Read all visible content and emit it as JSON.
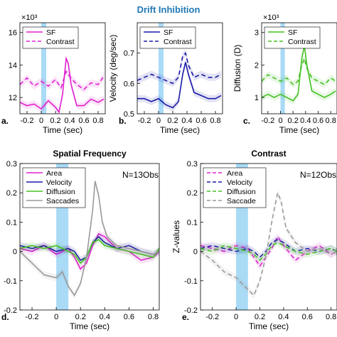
{
  "figure": {
    "title": "Drift Inhibition",
    "panel_letters": [
      "a.",
      "b.",
      "c.",
      "d.",
      "e."
    ]
  },
  "colors": {
    "sf": "#e020d0",
    "contrast": "#e020d0",
    "velocity": "#1a1aa8",
    "diffusion": "#44c020",
    "area": "#e020d0",
    "saccades": "#9a9a9a",
    "stim_band": "#9ad3f5",
    "title": "#1f78b4"
  },
  "chart_data": [
    {
      "type": "line",
      "panel": "a.",
      "xlabel": "Time (sec)",
      "ylabel": "",
      "exponent": "×10³",
      "xlim": [
        -0.3,
        0.9
      ],
      "ylim": [
        11,
        16.6
      ],
      "xticks": [
        -0.2,
        0,
        0.2,
        0.4,
        0.6,
        0.8
      ],
      "xticklabels": [
        "-0.2",
        "0",
        "0.2",
        "0.4",
        "0.6",
        "0.8"
      ],
      "yticks": [
        12,
        14,
        16
      ],
      "yticklabels": [
        "12",
        "14",
        "16"
      ],
      "stim_band": [
        0,
        0.07
      ],
      "legend": {
        "position": "top",
        "entries": [
          "SF",
          "Contrast"
        ]
      },
      "series": [
        {
          "name": "SF",
          "style": "solid",
          "x": [
            -0.3,
            -0.2,
            -0.1,
            0,
            0.1,
            0.2,
            0.25,
            0.3,
            0.35,
            0.38,
            0.42,
            0.5,
            0.6,
            0.7,
            0.8,
            0.88
          ],
          "y": [
            11.7,
            11.5,
            11.6,
            11.3,
            11.8,
            11.4,
            11.1,
            12.2,
            14.4,
            14.1,
            12.8,
            11.5,
            11.5,
            11.9,
            11.7,
            11.9
          ]
        },
        {
          "name": "Contrast",
          "style": "dashed",
          "x": [
            -0.3,
            -0.2,
            -0.1,
            0,
            0.1,
            0.2,
            0.28,
            0.35,
            0.4,
            0.5,
            0.6,
            0.7,
            0.8,
            0.88
          ],
          "y": [
            12.8,
            13.2,
            12.7,
            13.0,
            12.7,
            13.1,
            12.6,
            13.6,
            13.3,
            12.8,
            12.5,
            12.9,
            12.8,
            13.3
          ]
        }
      ]
    },
    {
      "type": "line",
      "panel": "b.",
      "xlabel": "Time (sec)",
      "ylabel": "Velocity (deg/sec)",
      "xlim": [
        -0.3,
        0.9
      ],
      "ylim": [
        0.5,
        0.8
      ],
      "xticks": [
        -0.2,
        0,
        0.2,
        0.4,
        0.6,
        0.8
      ],
      "xticklabels": [
        "-0.2",
        "0",
        "0.2",
        "0.4",
        "0.6",
        "0.8"
      ],
      "yticks": [
        0.5,
        0.6,
        0.7
      ],
      "yticklabels": [
        "0.5",
        "0.6",
        "0.7"
      ],
      "stim_band": [
        0,
        0.07
      ],
      "legend": {
        "position": "top",
        "entries": [
          "SF",
          "Contrast"
        ]
      },
      "series": [
        {
          "name": "SF",
          "style": "solid",
          "x": [
            -0.3,
            -0.2,
            -0.1,
            0,
            0.1,
            0.2,
            0.28,
            0.34,
            0.38,
            0.42,
            0.5,
            0.6,
            0.7,
            0.8,
            0.88
          ],
          "y": [
            0.55,
            0.55,
            0.54,
            0.55,
            0.53,
            0.52,
            0.54,
            0.63,
            0.67,
            0.63,
            0.57,
            0.56,
            0.55,
            0.55,
            0.56
          ]
        },
        {
          "name": "Contrast",
          "style": "dashed",
          "x": [
            -0.3,
            -0.2,
            -0.1,
            0,
            0.1,
            0.2,
            0.28,
            0.34,
            0.38,
            0.42,
            0.5,
            0.6,
            0.7,
            0.8,
            0.88
          ],
          "y": [
            0.61,
            0.62,
            0.63,
            0.62,
            0.61,
            0.6,
            0.62,
            0.69,
            0.7,
            0.66,
            0.62,
            0.63,
            0.62,
            0.62,
            0.63
          ]
        }
      ]
    },
    {
      "type": "line",
      "panel": "c.",
      "xlabel": "Time (sec)",
      "ylabel": "Diffusion (D)",
      "exponent": "×10³",
      "xlim": [
        -0.3,
        0.9
      ],
      "ylim": [
        0.5,
        3.3
      ],
      "xticks": [
        -0.2,
        0,
        0.2,
        0.4,
        0.6,
        0.8
      ],
      "xticklabels": [
        "-0.2",
        "0",
        "0.2",
        "0.4",
        "0.6",
        "0.8"
      ],
      "yticks": [
        1,
        2,
        3
      ],
      "yticklabels": [
        "1",
        "2",
        "3"
      ],
      "stim_band": [
        0,
        0.07
      ],
      "legend": {
        "position": "top",
        "entries": [
          "SF",
          "Contrast"
        ]
      },
      "series": [
        {
          "name": "SF",
          "style": "solid",
          "x": [
            -0.3,
            -0.2,
            -0.1,
            0,
            0.1,
            0.2,
            0.28,
            0.34,
            0.38,
            0.42,
            0.5,
            0.6,
            0.7,
            0.8,
            0.88
          ],
          "y": [
            1.0,
            1.1,
            1.0,
            1.1,
            1.0,
            0.9,
            1.1,
            2.2,
            2.6,
            2.0,
            1.2,
            1.1,
            1.0,
            1.1,
            1.2
          ]
        },
        {
          "name": "Contrast",
          "style": "dashed",
          "x": [
            -0.3,
            -0.2,
            -0.1,
            0,
            0.1,
            0.2,
            0.28,
            0.34,
            0.38,
            0.42,
            0.5,
            0.6,
            0.7,
            0.8,
            0.88
          ],
          "y": [
            1.5,
            1.7,
            1.6,
            1.5,
            1.6,
            1.4,
            1.5,
            2.0,
            2.2,
            1.9,
            1.6,
            1.5,
            1.4,
            1.6,
            1.5
          ]
        }
      ]
    },
    {
      "type": "line",
      "panel": "d.",
      "title": "Spatial Frequency",
      "annotation": "N=13Obs",
      "xlabel": "Time (sec)",
      "ylabel": "",
      "xlim": [
        -0.3,
        0.85
      ],
      "ylim": [
        -0.2,
        0.3
      ],
      "xticks": [
        -0.2,
        0,
        0.2,
        0.4,
        0.6,
        0.8
      ],
      "xticklabels": [
        "-0.2",
        "0",
        "0.2",
        "0.4",
        "0.6",
        "0.8"
      ],
      "yticks": [
        -0.2,
        -0.1,
        0,
        0.1,
        0.2,
        0.3
      ],
      "yticklabels": [
        "-0.2",
        "-0.1",
        "0",
        "0.1",
        "0.2",
        "0.3"
      ],
      "stim_band": [
        0,
        0.1
      ],
      "legend": {
        "position": "top-left",
        "entries": [
          "Area",
          "Velocity",
          "Diffusion",
          "Saccades"
        ]
      },
      "series": [
        {
          "name": "Area",
          "style": "solid",
          "x": [
            -0.3,
            -0.2,
            -0.1,
            0,
            0.1,
            0.15,
            0.2,
            0.25,
            0.3,
            0.35,
            0.4,
            0.5,
            0.6,
            0.7,
            0.8,
            0.85
          ],
          "y": [
            0.01,
            0.0,
            0.02,
            -0.01,
            0.01,
            -0.02,
            -0.06,
            -0.04,
            0.02,
            0.06,
            0.05,
            0.01,
            0.0,
            -0.03,
            -0.02,
            0.0
          ]
        },
        {
          "name": "Velocity",
          "style": "solid",
          "x": [
            -0.3,
            -0.2,
            -0.1,
            0,
            0.1,
            0.15,
            0.2,
            0.25,
            0.3,
            0.35,
            0.4,
            0.5,
            0.6,
            0.7,
            0.8,
            0.85
          ],
          "y": [
            0.02,
            0.01,
            0.02,
            0.0,
            0.01,
            0.0,
            -0.03,
            -0.02,
            0.03,
            0.05,
            0.03,
            0.01,
            0.02,
            0.0,
            -0.01,
            0.0
          ]
        },
        {
          "name": "Diffusion",
          "style": "solid",
          "x": [
            -0.3,
            -0.2,
            -0.1,
            0,
            0.1,
            0.15,
            0.2,
            0.25,
            0.3,
            0.35,
            0.4,
            0.5,
            0.6,
            0.7,
            0.8,
            0.85
          ],
          "y": [
            0.01,
            0.02,
            0.01,
            0.02,
            0.0,
            -0.01,
            -0.04,
            -0.02,
            0.03,
            0.04,
            0.02,
            0.01,
            0.0,
            -0.01,
            -0.02,
            0.01
          ]
        },
        {
          "name": "Saccades",
          "style": "solid",
          "x": [
            -0.3,
            -0.2,
            -0.1,
            0,
            0.05,
            0.1,
            0.15,
            0.2,
            0.25,
            0.3,
            0.32,
            0.35,
            0.38,
            0.42,
            0.5,
            0.6,
            0.7,
            0.8,
            0.85
          ],
          "y": [
            0.0,
            -0.04,
            -0.08,
            -0.09,
            -0.07,
            -0.12,
            -0.15,
            -0.11,
            -0.02,
            0.14,
            0.24,
            0.19,
            0.1,
            0.05,
            0.02,
            0.01,
            0.0,
            -0.01,
            0.0
          ]
        }
      ]
    },
    {
      "type": "line",
      "panel": "e.",
      "title": "Contrast",
      "annotation": "N=12Obs",
      "xlabel": "Time (sec)",
      "ylabel": "Z-values",
      "xlim": [
        -0.3,
        0.85
      ],
      "ylim": [
        -0.2,
        0.3
      ],
      "xticks": [
        -0.2,
        0,
        0.2,
        0.4,
        0.6,
        0.8
      ],
      "xticklabels": [
        "-0.2",
        "0",
        "0.2",
        "0.4",
        "0.6",
        "0.8"
      ],
      "yticks": [
        -0.2,
        -0.1,
        0,
        0.1,
        0.2,
        0.3
      ],
      "yticklabels": [
        "-0.2",
        "-0.1",
        "0",
        "0.1",
        "0.2",
        "0.3"
      ],
      "stim_band": [
        0,
        0.1
      ],
      "legend": {
        "position": "top-left",
        "entries": [
          "Area",
          "Velocity",
          "Diffusion",
          "Saccade"
        ]
      },
      "series": [
        {
          "name": "Area",
          "style": "dashed",
          "x": [
            -0.3,
            -0.2,
            -0.1,
            0,
            0.1,
            0.15,
            0.2,
            0.25,
            0.3,
            0.35,
            0.4,
            0.5,
            0.6,
            0.7,
            0.8,
            0.85
          ],
          "y": [
            0.02,
            0.01,
            0.0,
            0.02,
            0.01,
            -0.02,
            -0.05,
            -0.02,
            0.01,
            0.05,
            0.02,
            -0.03,
            0.0,
            0.02,
            -0.01,
            0.0
          ]
        },
        {
          "name": "Velocity",
          "style": "dashed",
          "x": [
            -0.3,
            -0.2,
            -0.1,
            0,
            0.1,
            0.15,
            0.2,
            0.25,
            0.3,
            0.35,
            0.4,
            0.5,
            0.6,
            0.7,
            0.8,
            0.85
          ],
          "y": [
            0.01,
            0.02,
            0.01,
            0.0,
            0.01,
            0.0,
            -0.02,
            0.0,
            0.03,
            0.04,
            0.03,
            0.0,
            0.01,
            0.0,
            0.01,
            0.0
          ]
        },
        {
          "name": "Diffusion",
          "style": "dashed",
          "x": [
            -0.3,
            -0.2,
            -0.1,
            0,
            0.1,
            0.15,
            0.2,
            0.25,
            0.3,
            0.35,
            0.4,
            0.5,
            0.6,
            0.7,
            0.8,
            0.85
          ],
          "y": [
            0.01,
            0.0,
            0.02,
            0.01,
            0.0,
            -0.01,
            -0.03,
            -0.01,
            0.02,
            0.03,
            0.02,
            0.0,
            -0.01,
            0.0,
            0.01,
            0.0
          ]
        },
        {
          "name": "Saccade",
          "style": "dashed",
          "x": [
            -0.3,
            -0.2,
            -0.1,
            0,
            0.05,
            0.1,
            0.15,
            0.2,
            0.25,
            0.3,
            0.35,
            0.38,
            0.42,
            0.5,
            0.6,
            0.7,
            0.8,
            0.85
          ],
          "y": [
            0.0,
            -0.03,
            -0.07,
            -0.09,
            -0.11,
            -0.13,
            -0.15,
            -0.1,
            -0.02,
            0.1,
            0.2,
            0.17,
            0.08,
            0.03,
            0.0,
            0.01,
            -0.01,
            0.0
          ]
        }
      ]
    }
  ]
}
